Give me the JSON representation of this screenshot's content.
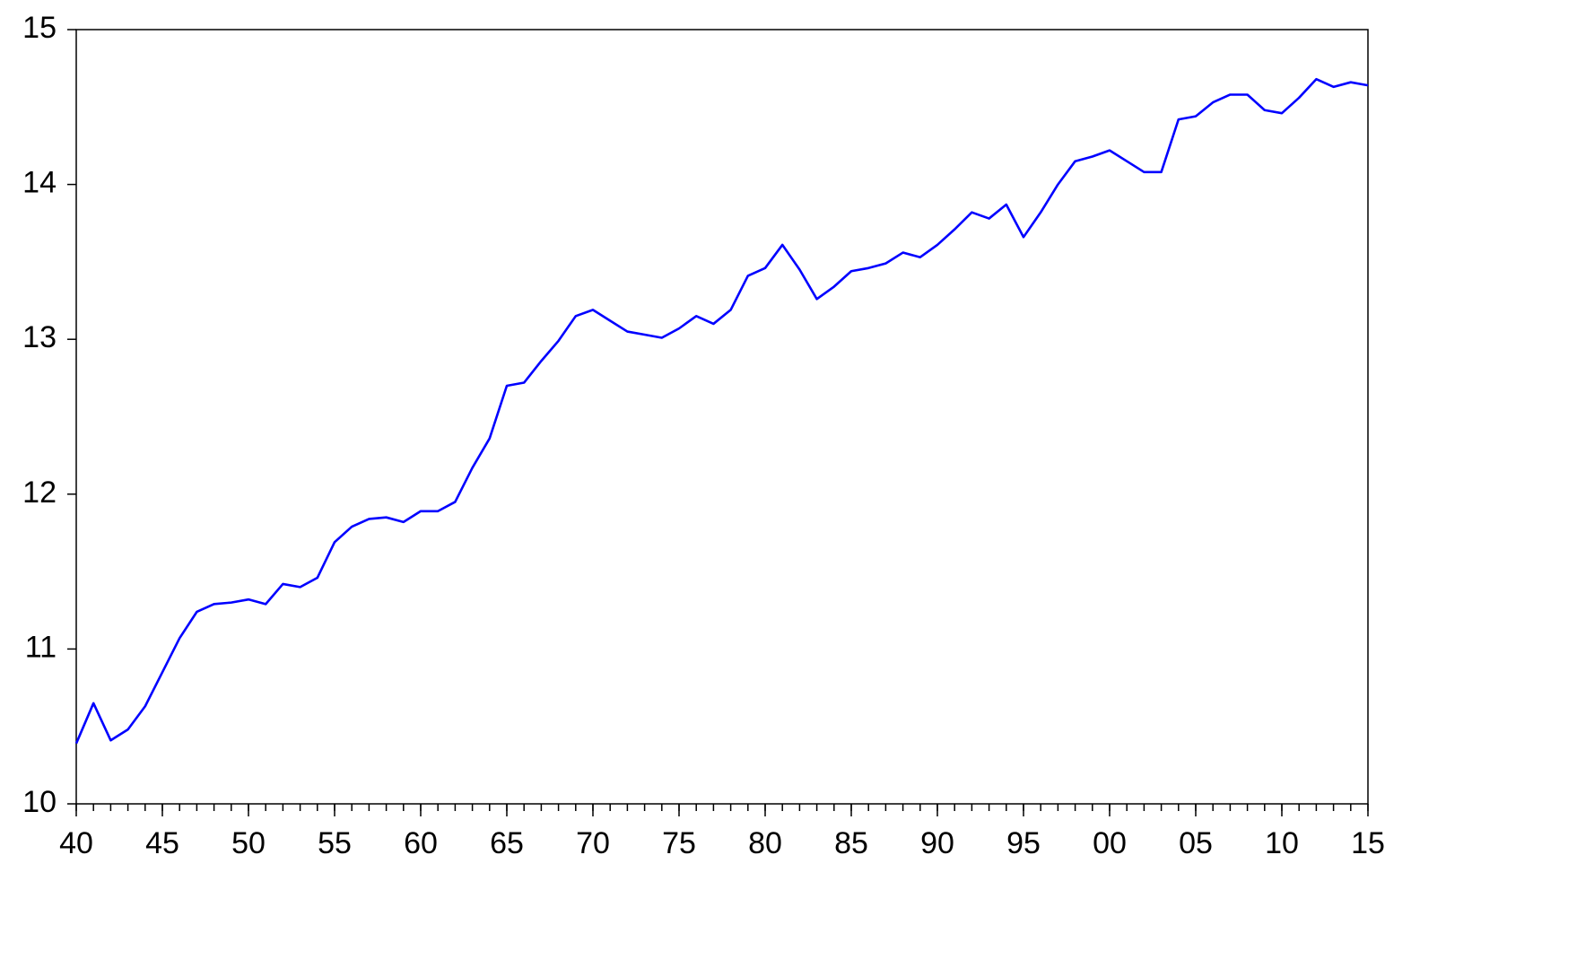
{
  "chart_data": {
    "type": "line",
    "x": [
      1940,
      1941,
      1942,
      1943,
      1944,
      1945,
      1946,
      1947,
      1948,
      1949,
      1950,
      1951,
      1952,
      1953,
      1954,
      1955,
      1956,
      1957,
      1958,
      1959,
      1960,
      1961,
      1962,
      1963,
      1964,
      1965,
      1966,
      1967,
      1968,
      1969,
      1970,
      1971,
      1972,
      1973,
      1974,
      1975,
      1976,
      1977,
      1978,
      1979,
      1980,
      1981,
      1982,
      1983,
      1984,
      1985,
      1986,
      1987,
      1988,
      1989,
      1990,
      1991,
      1992,
      1993,
      1994,
      1995,
      1996,
      1997,
      1998,
      1999,
      2000,
      2001,
      2002,
      2003,
      2004,
      2005,
      2006,
      2007,
      2008,
      2009,
      2010,
      2011,
      2012,
      2013,
      2014,
      2015
    ],
    "series": [
      {
        "color": "#0000ff",
        "values": [
          10.39,
          10.65,
          10.41,
          10.48,
          10.63,
          10.85,
          11.07,
          11.24,
          11.29,
          11.3,
          11.32,
          11.29,
          11.42,
          11.4,
          11.46,
          11.69,
          11.79,
          11.84,
          11.85,
          11.82,
          11.89,
          11.89,
          11.95,
          12.17,
          12.36,
          12.7,
          12.72,
          12.86,
          12.99,
          13.15,
          13.19,
          13.12,
          13.05,
          13.03,
          13.01,
          13.07,
          13.15,
          13.1,
          13.19,
          13.41,
          13.46,
          13.61,
          13.45,
          13.26,
          13.34,
          13.44,
          13.46,
          13.49,
          13.56,
          13.53,
          13.61,
          13.71,
          13.82,
          13.78,
          13.87,
          13.66,
          13.82,
          14.0,
          14.15,
          14.18,
          14.22,
          14.15,
          14.08,
          14.08,
          14.42,
          14.44,
          14.53,
          14.58,
          14.58,
          14.48,
          14.46,
          14.56,
          14.68,
          14.63,
          14.66,
          14.64
        ]
      }
    ],
    "xlim": [
      1940,
      2015
    ],
    "xticks": [
      {
        "value": 1940,
        "label": "40"
      },
      {
        "value": 1945,
        "label": "45"
      },
      {
        "value": 1950,
        "label": "50"
      },
      {
        "value": 1955,
        "label": "55"
      },
      {
        "value": 1960,
        "label": "60"
      },
      {
        "value": 1965,
        "label": "65"
      },
      {
        "value": 1970,
        "label": "70"
      },
      {
        "value": 1975,
        "label": "75"
      },
      {
        "value": 1980,
        "label": "80"
      },
      {
        "value": 1985,
        "label": "85"
      },
      {
        "value": 1990,
        "label": "90"
      },
      {
        "value": 1995,
        "label": "95"
      },
      {
        "value": 2000,
        "label": "00"
      },
      {
        "value": 2005,
        "label": "05"
      },
      {
        "value": 2010,
        "label": "10"
      },
      {
        "value": 2015,
        "label": "15"
      }
    ],
    "ylim": [
      10,
      15
    ],
    "yticks": [
      10,
      11,
      12,
      13,
      14,
      15
    ],
    "grid": false
  }
}
